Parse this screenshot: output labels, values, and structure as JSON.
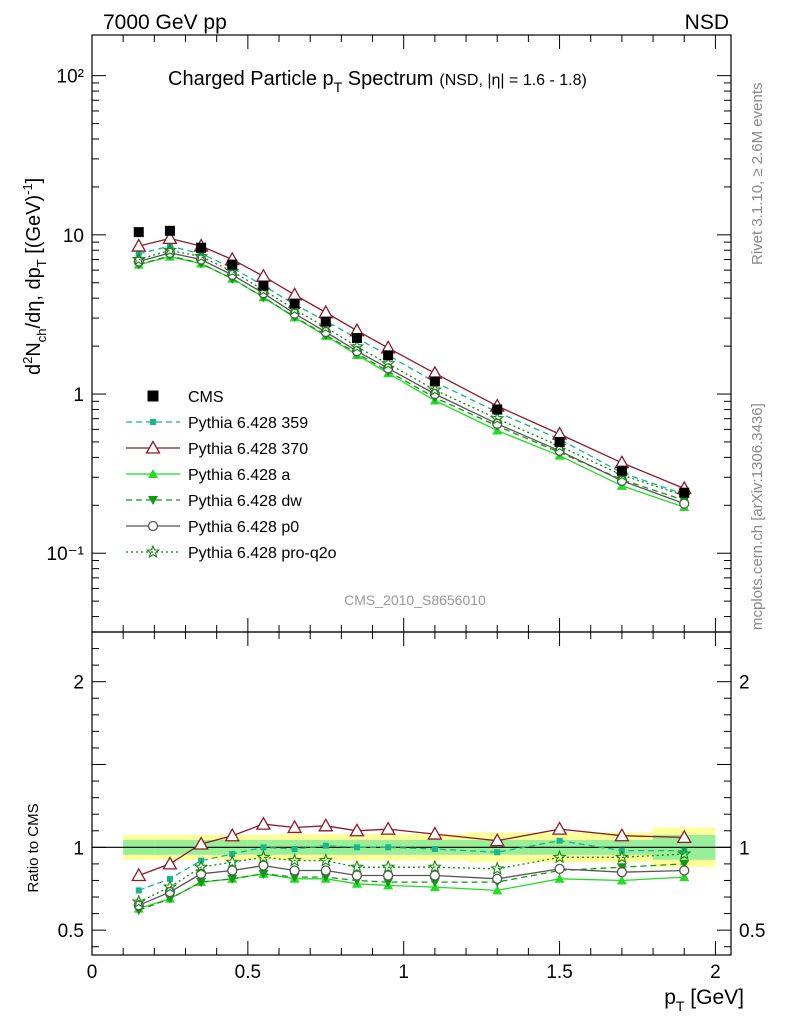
{
  "header": {
    "energy": "7000 GeV pp",
    "process": "NSD"
  },
  "side_text": {
    "rivet": "Rivet 3.1.10, ≥ 2.6M events",
    "mcplots": "mcplots.cern.ch [arXiv:1306.3436]"
  },
  "main_title": {
    "text": "Charged Particle p",
    "sub": "T",
    "after": " Spectrum",
    "small": "(NSD, |η| = 1.6 - 1.8)"
  },
  "watermark": "CMS_2010_S8656010",
  "ylabel_main": "d²N_ch/dη, dp_T [(GeV)⁻¹]",
  "ylabel_ratio": "Ratio to CMS",
  "xlabel": "p_T [GeV]",
  "chart_data": [
    {
      "type": "scatter",
      "title": "Charged Particle p_T Spectrum (NSD, |η| = 1.6 - 1.8)",
      "xlabel": "p_T [GeV]",
      "ylabel": "d²N_ch/dη, dp_T [(GeV)⁻¹]",
      "xlim": [
        0,
        2.05
      ],
      "ylim": [
        0.032,
        180
      ],
      "yscale": "log",
      "yticks": [
        "10⁻¹",
        "1",
        "10",
        "10²"
      ],
      "xticks": [
        "0",
        "0.5",
        "1",
        "1.5",
        "2"
      ],
      "legend_position": "center-left",
      "x": [
        0.15,
        0.25,
        0.35,
        0.45,
        0.55,
        0.65,
        0.75,
        0.85,
        0.95,
        1.1,
        1.3,
        1.5,
        1.7,
        1.9
      ],
      "series": [
        {
          "name": "CMS",
          "color": "#000000",
          "marker": "square",
          "values": [
            10.4,
            10.6,
            8.3,
            6.5,
            4.8,
            3.7,
            2.85,
            2.25,
            1.75,
            1.2,
            0.8,
            0.5,
            0.33,
            0.24
          ]
        },
        {
          "name": "Pythia 6.428 359",
          "color": "#1ab58a",
          "marker": "small-square",
          "dash": "6,4",
          "values": [
            7.6,
            8.5,
            7.6,
            6.2,
            4.8,
            3.65,
            2.87,
            2.24,
            1.75,
            1.19,
            0.77,
            0.52,
            0.32,
            0.235
          ]
        },
        {
          "name": "Pythia 6.428 370",
          "color": "#8b1a2b",
          "marker": "open-triangle",
          "dash": "",
          "values": [
            8.5,
            9.5,
            8.5,
            7.0,
            5.5,
            4.2,
            3.25,
            2.5,
            1.95,
            1.35,
            0.84,
            0.56,
            0.37,
            0.255
          ]
        },
        {
          "name": "Pythia 6.428 a",
          "color": "#22dd22",
          "marker": "triangle",
          "dash": "",
          "values": [
            6.5,
            7.3,
            6.6,
            5.3,
            4.05,
            3.03,
            2.32,
            1.76,
            1.35,
            0.91,
            0.59,
            0.41,
            0.265,
            0.195
          ]
        },
        {
          "name": "Pythia 6.428 dw",
          "color": "#119911",
          "marker": "down-triangle",
          "dash": "6,4",
          "values": [
            6.5,
            7.4,
            6.6,
            5.3,
            4.05,
            3.05,
            2.35,
            1.8,
            1.39,
            0.95,
            0.63,
            0.43,
            0.29,
            0.215
          ]
        },
        {
          "name": "Pythia 6.428 p0",
          "color": "#555555",
          "marker": "open-circle",
          "dash": "",
          "values": [
            6.8,
            7.7,
            7.0,
            5.6,
            4.3,
            3.2,
            2.45,
            1.86,
            1.45,
            1.0,
            0.65,
            0.44,
            0.285,
            0.205
          ]
        },
        {
          "name": "Pythia 6.428 pro-q2o",
          "color": "#118811",
          "marker": "open-star",
          "dash": "2,3",
          "values": [
            7.0,
            8.0,
            7.3,
            5.9,
            4.5,
            3.4,
            2.62,
            1.98,
            1.55,
            1.06,
            0.7,
            0.47,
            0.31,
            0.23
          ]
        }
      ]
    },
    {
      "type": "line",
      "ylabel": "Ratio to CMS",
      "xlim": [
        0,
        2.05
      ],
      "ylim": [
        0.35,
        2.3
      ],
      "yticks": [
        "0.5",
        "1",
        "2"
      ],
      "x": [
        0.15,
        0.25,
        0.35,
        0.45,
        0.55,
        0.65,
        0.75,
        0.85,
        0.95,
        1.1,
        1.3,
        1.5,
        1.7,
        1.9
      ],
      "bands": {
        "edges": [
          0.1,
          0.2,
          0.3,
          0.4,
          0.5,
          0.6,
          0.7,
          0.8,
          0.9,
          1.0,
          1.2,
          1.4,
          1.6,
          1.8,
          2.0
        ],
        "stat_color": "#99ee99",
        "stat_halfwidth": [
          0.045,
          0.045,
          0.045,
          0.045,
          0.045,
          0.045,
          0.045,
          0.045,
          0.045,
          0.045,
          0.045,
          0.045,
          0.045,
          0.075
        ],
        "total_color": "#ffff99",
        "total_halfwidth": [
          0.075,
          0.075,
          0.075,
          0.075,
          0.075,
          0.08,
          0.08,
          0.08,
          0.08,
          0.08,
          0.09,
          0.09,
          0.09,
          0.12
        ]
      },
      "series": [
        {
          "name": "Pythia 6.428 359",
          "color": "#1ab58a",
          "marker": "small-square",
          "dash": "6,4",
          "values": [
            0.74,
            0.81,
            0.92,
            0.96,
            1.0,
            0.99,
            1.01,
            1.0,
            1.0,
            0.99,
            0.97,
            1.04,
            0.98,
            0.98
          ]
        },
        {
          "name": "Pythia 6.428 370",
          "color": "#8b1a2b",
          "marker": "open-triangle",
          "dash": "",
          "values": [
            0.83,
            0.9,
            1.02,
            1.07,
            1.14,
            1.12,
            1.13,
            1.1,
            1.11,
            1.08,
            1.04,
            1.11,
            1.07,
            1.06
          ]
        },
        {
          "name": "Pythia 6.428 a",
          "color": "#22dd22",
          "marker": "triangle",
          "dash": "",
          "values": [
            0.63,
            0.69,
            0.79,
            0.81,
            0.84,
            0.81,
            0.81,
            0.78,
            0.77,
            0.76,
            0.74,
            0.81,
            0.8,
            0.82
          ]
        },
        {
          "name": "Pythia 6.428 dw",
          "color": "#119911",
          "marker": "down-triangle",
          "dash": "6,4",
          "values": [
            0.62,
            0.69,
            0.79,
            0.81,
            0.84,
            0.82,
            0.82,
            0.8,
            0.79,
            0.79,
            0.79,
            0.86,
            0.88,
            0.9
          ]
        },
        {
          "name": "Pythia 6.428 p0",
          "color": "#555555",
          "marker": "open-circle",
          "dash": "",
          "values": [
            0.65,
            0.73,
            0.84,
            0.86,
            0.89,
            0.86,
            0.86,
            0.83,
            0.83,
            0.83,
            0.81,
            0.87,
            0.85,
            0.86
          ]
        },
        {
          "name": "Pythia 6.428 pro-q2o",
          "color": "#118811",
          "marker": "open-star",
          "dash": "2,3",
          "values": [
            0.67,
            0.76,
            0.88,
            0.91,
            0.94,
            0.92,
            0.92,
            0.88,
            0.88,
            0.88,
            0.87,
            0.94,
            0.94,
            0.96
          ]
        }
      ]
    }
  ]
}
